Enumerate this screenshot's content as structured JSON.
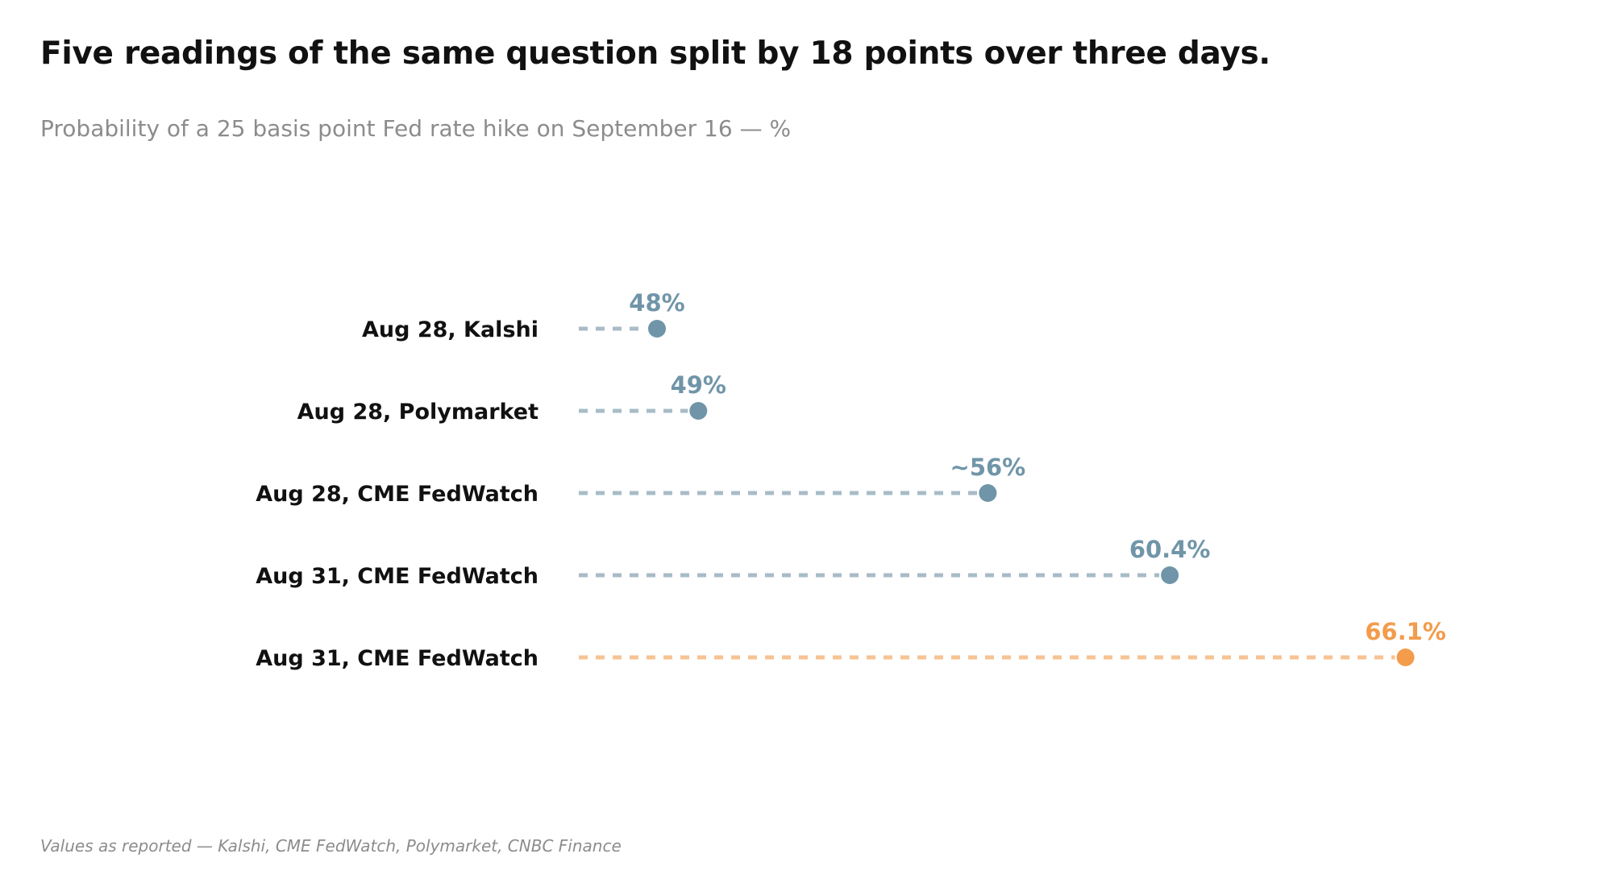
{
  "chart_data": {
    "type": "dot-plot",
    "title": "Five readings of the same question split by 18 points over three days.",
    "subtitle": "Probability of a 25 basis point Fed rate hike on September 16 — %",
    "footnote": "Values as reported — Kalshi, CME FedWatch, Polymarket, CNBC Finance",
    "xlim": [
      45,
      66.1
    ],
    "grid": false,
    "legend": "none",
    "colors": {
      "base_dot": "#7095a8",
      "base_line": "#a8bcc7",
      "highlight_dot": "#f29c4c",
      "highlight_line": "#f7c393",
      "label_text": "#111111"
    },
    "rows": [
      {
        "label": "Aug 28, Kalshi",
        "value": 48,
        "value_label": "48%",
        "highlight": false
      },
      {
        "label": "Aug 28, Polymarket",
        "value": 49,
        "value_label": "49%",
        "highlight": false
      },
      {
        "label": "Aug 28, CME FedWatch",
        "value": 56,
        "value_label": "~56%",
        "highlight": false
      },
      {
        "label": "Aug 31, CME FedWatch",
        "value": 60.4,
        "value_label": "60.4%",
        "highlight": false
      },
      {
        "label": "Aug 31, CME FedWatch",
        "value": 66.1,
        "value_label": "66.1%",
        "highlight": true
      }
    ]
  }
}
